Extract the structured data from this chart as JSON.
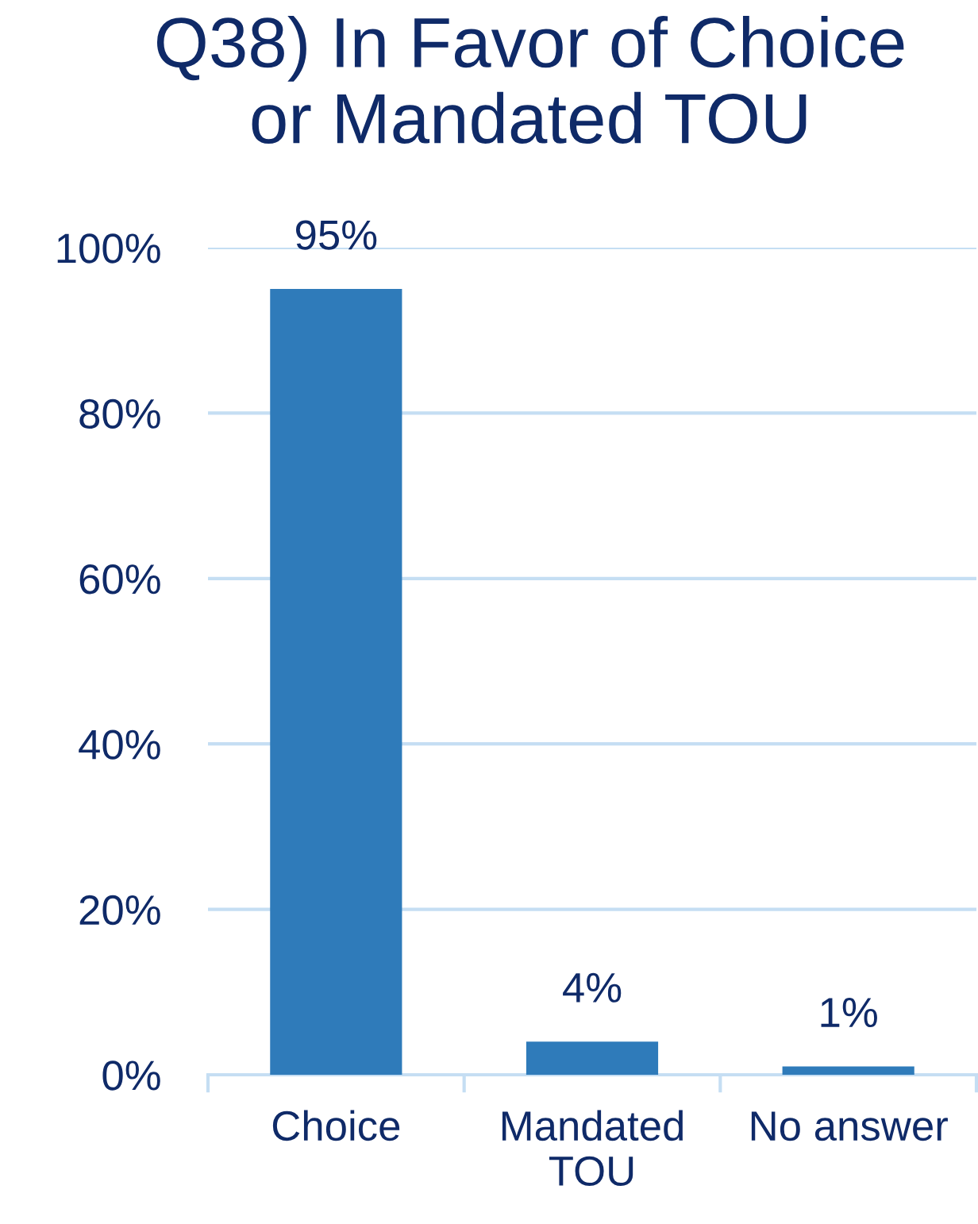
{
  "chart_data": {
    "type": "bar",
    "title": "Q38) In Favor of Choice\nor Mandated TOU",
    "categories": [
      "Choice",
      "Mandated\nTOU",
      "No answer"
    ],
    "values": [
      95,
      4,
      1
    ],
    "value_labels": [
      "95%",
      "4%",
      "1%"
    ],
    "color": "#2f7bba",
    "ylim": [
      0,
      100
    ],
    "yticks": [
      {
        "value": 0,
        "label": "0%"
      },
      {
        "value": 20,
        "label": "20%"
      },
      {
        "value": 40,
        "label": "40%"
      },
      {
        "value": 60,
        "label": "60%"
      },
      {
        "value": 80,
        "label": "80%"
      },
      {
        "value": 100,
        "label": "100%"
      }
    ],
    "grid": "y"
  }
}
